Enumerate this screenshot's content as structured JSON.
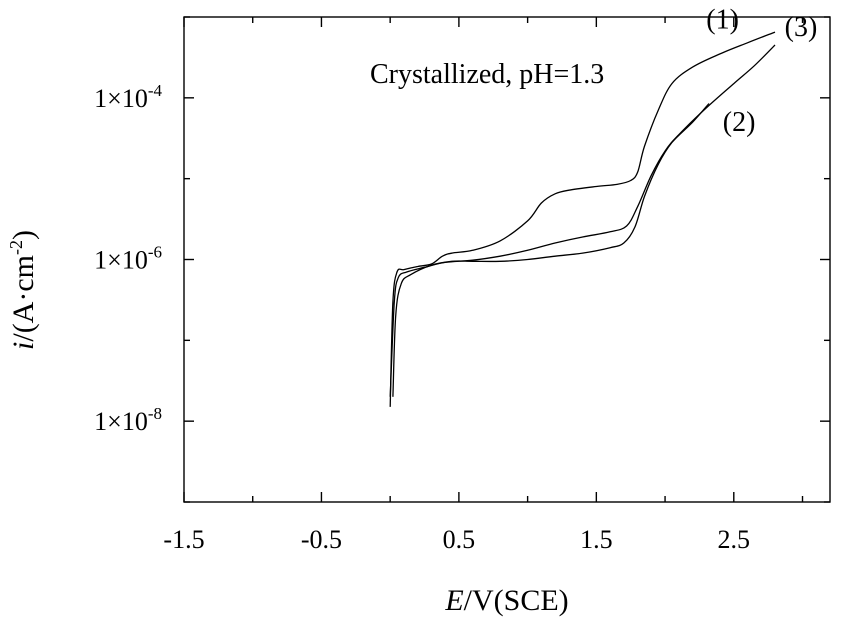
{
  "chart_data": {
    "type": "line",
    "annotation": "Crystallized, pH=1.3",
    "xlabel": {
      "italic": "E",
      "rest": "/V(SCE)"
    },
    "ylabel": {
      "italic": "i",
      "rest": "/(A·cm",
      "sup": "-2",
      "close": ")"
    },
    "x_scale": "linear",
    "y_scale": "log",
    "xlim": [
      -1.5,
      3.2
    ],
    "ylim": [
      1e-09,
      0.001
    ],
    "x_ticks": [
      -1.5,
      -0.5,
      0.5,
      1.5,
      2.5
    ],
    "x_tick_labels": [
      "-1.5",
      "-0.5",
      "0.5",
      "1.5",
      "2.5"
    ],
    "y_ticks": [
      1e-08,
      1e-06,
      0.0001
    ],
    "y_tick_labels": [
      {
        "mant": "1×10",
        "exp": "-8"
      },
      {
        "mant": "1×10",
        "exp": "-6"
      },
      {
        "mant": "1×10",
        "exp": "-4"
      }
    ],
    "series": [
      {
        "name": "(1)",
        "label_at": {
          "x": 2.3,
          "y": 0.00072
        },
        "x": [
          0.0,
          0.02,
          0.05,
          0.1,
          0.2,
          0.3,
          0.38,
          0.45,
          0.6,
          0.8,
          1.0,
          1.1,
          1.2,
          1.3,
          1.5,
          1.65,
          1.75,
          1.8,
          1.85,
          1.95,
          2.05,
          2.2,
          2.4,
          2.6,
          2.8
        ],
        "y": [
          1.5e-08,
          3e-07,
          7e-07,
          7.5e-07,
          8.2e-07,
          8.8e-07,
          1.1e-06,
          1.2e-06,
          1.3e-06,
          1.7e-06,
          3e-06,
          5e-06,
          6.5e-06,
          7.2e-06,
          8e-06,
          8.5e-06,
          9.5e-06,
          1.2e-05,
          2.5e-05,
          7e-05,
          0.00015,
          0.00024,
          0.00035,
          0.00048,
          0.00065
        ]
      },
      {
        "name": "(2)",
        "label_at": {
          "x": 2.42,
          "y": 3.9e-05
        },
        "x": [
          0.02,
          0.04,
          0.08,
          0.15,
          0.3,
          0.45,
          0.6,
          0.8,
          1.0,
          1.2,
          1.4,
          1.6,
          1.7,
          1.78,
          1.85,
          1.95,
          2.05,
          2.2,
          2.32
        ],
        "y": [
          2e-08,
          2e-07,
          5e-07,
          6.5e-07,
          8.5e-07,
          9.5e-07,
          9.5e-07,
          9.5e-07,
          1e-06,
          1.1e-06,
          1.2e-06,
          1.4e-06,
          1.6e-06,
          2.5e-06,
          6e-06,
          1.5e-05,
          2.8e-05,
          5e-05,
          8.5e-05
        ]
      },
      {
        "name": "(3)",
        "label_at": {
          "x": 2.87,
          "y": 0.00058
        },
        "x": [
          0.0,
          0.03,
          0.06,
          0.12,
          0.25,
          0.4,
          0.6,
          0.8,
          1.0,
          1.2,
          1.4,
          1.6,
          1.72,
          1.8,
          1.9,
          2.0,
          2.1,
          2.3,
          2.5,
          2.65,
          2.8
        ],
        "y": [
          2e-08,
          3e-07,
          6e-07,
          7e-07,
          8e-07,
          9.2e-07,
          9.8e-07,
          1.1e-06,
          1.3e-06,
          1.6e-06,
          1.9e-06,
          2.2e-06,
          2.6e-06,
          4.5e-06,
          1.1e-05,
          2.2e-05,
          3.5e-05,
          7.5e-05,
          0.00015,
          0.00025,
          0.00045
        ]
      }
    ]
  }
}
